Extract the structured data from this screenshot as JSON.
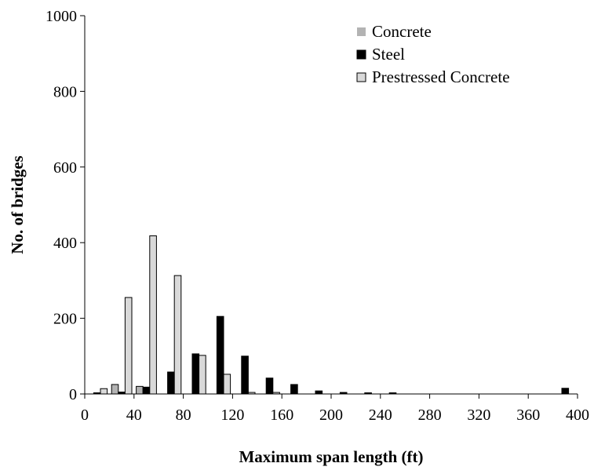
{
  "chart_data": {
    "type": "bar",
    "title": "",
    "xlabel": "Maximum span length (ft)",
    "ylabel": "No. of bridges",
    "xlim": [
      0,
      400
    ],
    "ylim": [
      0,
      1000
    ],
    "xticks": [
      0,
      40,
      80,
      120,
      160,
      200,
      240,
      280,
      320,
      360,
      400
    ],
    "yticks": [
      0,
      200,
      400,
      600,
      800,
      1000
    ],
    "bin_width": 20,
    "categories": [
      20,
      40,
      60,
      80,
      100,
      120,
      140,
      160,
      180,
      200,
      220,
      240,
      260,
      280,
      300,
      320,
      340,
      360,
      380,
      400
    ],
    "series": [
      {
        "name": "Concrete",
        "color": "#b3b3b3",
        "values": [
          0,
          25,
          20,
          0,
          0,
          0,
          0,
          0,
          0,
          0,
          0,
          0,
          0,
          0,
          0,
          0,
          0,
          0,
          0,
          0
        ]
      },
      {
        "name": "Steel",
        "color": "#000000",
        "values": [
          3,
          5,
          18,
          58,
          106,
          205,
          100,
          42,
          25,
          8,
          4,
          3,
          3,
          0,
          0,
          0,
          0,
          0,
          0,
          15
        ]
      },
      {
        "name": "Prestressed Concrete",
        "color": "#d9d9d9",
        "values": [
          14,
          255,
          418,
          313,
          102,
          52,
          4,
          4,
          0,
          0,
          0,
          0,
          0,
          0,
          0,
          0,
          0,
          0,
          0,
          0
        ]
      }
    ],
    "legend_position": "top-right",
    "grid": false
  }
}
